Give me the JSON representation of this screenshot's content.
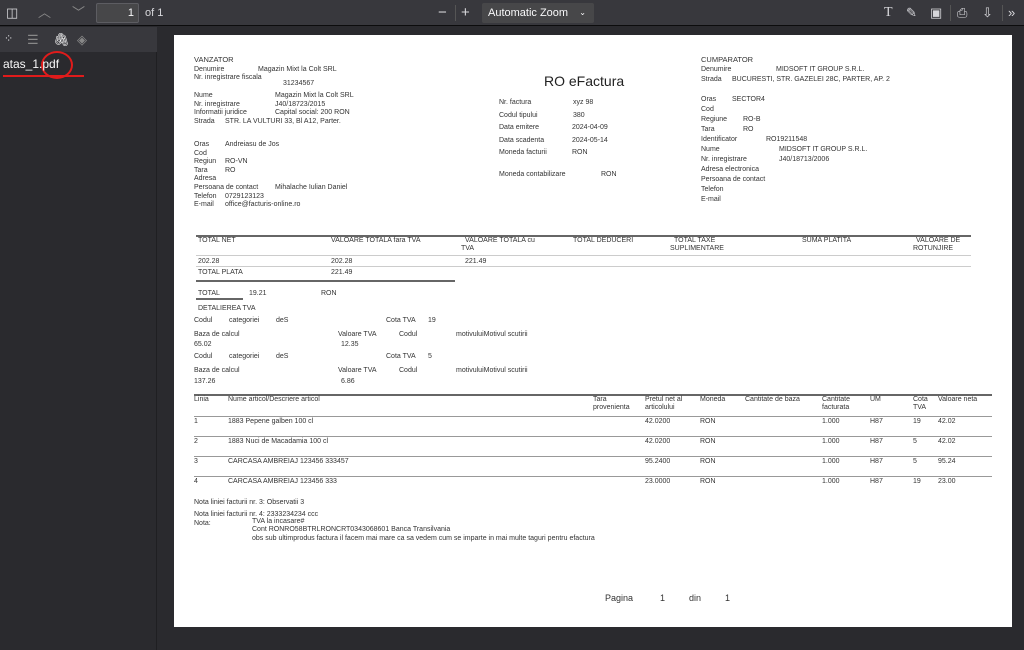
{
  "toolbar": {
    "page_current": "1",
    "page_total": "of 1",
    "zoom": "Automatic Zoom",
    "icons": [
      "sidebar-toggle-icon",
      "chevron-up-icon",
      "chevron-down-icon",
      "minus-icon",
      "plus-icon",
      "text-icon",
      "draw-icon",
      "image-icon",
      "print-icon",
      "save-icon",
      "more-icon"
    ]
  },
  "sidebar": {
    "tabs": [
      "thumbnails-icon",
      "outline-icon",
      "attachments-icon",
      "layers-icon"
    ],
    "attachment": "atas_1.pdf",
    "highlight_color": "#e01b1b"
  },
  "invoice": {
    "title": "RO eFactura",
    "seller": {
      "heading": "VANZATOR",
      "denumire_l": "Denumire",
      "denumire": "Magazin Mixt la Colt SRL",
      "nrfisc_l": "Nr. inregistrare fiscala",
      "nrfisc": "31234567",
      "nume_l": "Nume",
      "nume": "Magazin Mixt la Colt SRL",
      "nrinreg_l": "Nr. inregistrare",
      "nrinreg": "J40/18723/2015",
      "info_l": "Informatii juridice",
      "info": "Capital social: 200 RON",
      "strada_l": "Strada",
      "strada": "STR. LA VULTURI 33, Bl A12, Parter.",
      "oras_l": "Oras",
      "oras": "Andreiasu de Jos",
      "cod_l": "Cod",
      "regiun_l": "Regiun",
      "regiun": "RO-VN",
      "tara_l": "Tara",
      "tara": "RO",
      "adresa_l": "Adresa",
      "pers_l": "Persoana de contact",
      "pers": "Mihalache Iulian Daniel",
      "tel_l": "Telefon",
      "tel": "0729123123",
      "email_l": "E-mail",
      "email": "office@facturis-online.ro"
    },
    "meta": {
      "nr_l": "Nr. factura",
      "nr": "xyz 98",
      "cod_l": "Codul tipului",
      "cod": "380",
      "emit_l": "Data emitere",
      "emit": "2024-04-09",
      "scad_l": "Data scadenta",
      "scad": "2024-05-14",
      "mon_l": "Moneda facturii",
      "mon": "RON",
      "monc_l": "Moneda contabilizare",
      "monc": "RON"
    },
    "buyer": {
      "heading": "CUMPARATOR",
      "denumire_l": "Denumire",
      "denumire": "MIDSOFT IT GROUP S.R.L.",
      "strada_l": "Strada",
      "strada": "BUCURESTI, STR. GAZELEI 28C, PARTER, AP. 2",
      "oras_l": "Oras",
      "oras": "SECTOR4",
      "cod_l": "Cod",
      "regiune_l": "Regiune",
      "regiune": "RO-B",
      "tara_l": "Tara",
      "tara": "RO",
      "id_l": "Identificator",
      "id": "RO19211548",
      "nume_l": "Nume",
      "nume": "MIDSOFT IT GROUP S.R.L.",
      "nrinreg_l": "Nr. inregistrare",
      "nrinreg": "J40/18713/2006",
      "adr_l": "Adresa electronica",
      "pers_l": "Persoana de contact",
      "tel_l": "Telefon",
      "email_l": "E-mail"
    },
    "totals": {
      "h_net": "TOTAL NET",
      "h_fara": "VALOARE TOTALA  fara TVA",
      "h_cu1": "VALOARE TOTALA cu",
      "h_cu2": "TVA",
      "h_ded": "TOTAL DEDUCERI",
      "h_taxe1": "TOTAL TAXE",
      "h_taxe2": "SUPLIMENTARE",
      "h_suma": "SUMA PLATITA",
      "h_rot1": "VALOARE DE",
      "h_rot2": "ROTUNJIRE",
      "net": "202.28",
      "fara": "202.28",
      "cu": "221.49",
      "plata_l": "TOTAL PLATA",
      "plata": "221.49"
    },
    "tva": {
      "total_l": "TOTAL",
      "total": "19.21",
      "total_cur": "RON",
      "heading": "DETALIEREA TVA",
      "codul": "Codul",
      "categoriei": "categoriei",
      "des": "deS",
      "cota_l": "Cota TVA",
      "baza_l": "Baza de calcul",
      "val_l": "Valoare TVA",
      "codul2": "Codul",
      "motiv": "motivuluiMotivul scutirii",
      "rows": [
        {
          "cota": "19",
          "baza": "65.02",
          "val": "12.35"
        },
        {
          "cota": "5",
          "baza": "137.26",
          "val": "6.86"
        }
      ]
    },
    "items": {
      "headers": [
        "Linia",
        "Nume articol/Descriere articol",
        "Tara provenienta",
        "Pretul net al articolului",
        "Moneda",
        "Cantitate de baza",
        "Cantitate facturata",
        "UM",
        "Cota TVA",
        "Valoare neta"
      ],
      "rows": [
        {
          "linia": "1",
          "nume": "1883 Pepene galben 100 cl",
          "pret": "42.0200",
          "moneda": "RON",
          "cant": "1.000",
          "um": "H87",
          "cota": "19",
          "val": "42.02"
        },
        {
          "linia": "2",
          "nume": "1883 Nuci de Macadamia 100 cl",
          "pret": "42.0200",
          "moneda": "RON",
          "cant": "1.000",
          "um": "H87",
          "cota": "5",
          "val": "42.02"
        },
        {
          "linia": "3",
          "nume": "CARCASA AMBREIAJ 123456 333457",
          "pret": "95.2400",
          "moneda": "RON",
          "cant": "1.000",
          "um": "H87",
          "cota": "5",
          "val": "95.24"
        },
        {
          "linia": "4",
          "nume": "CARCASA AMBREIAJ 123456 333",
          "pret": "23.0000",
          "moneda": "RON",
          "cant": "1.000",
          "um": "H87",
          "cota": "19",
          "val": "23.00"
        }
      ]
    },
    "notes": {
      "n3": "Nota liniei facturii nr. 3: Observatii 3",
      "n4": "Nota liniei facturii nr. 4: 2333234234 ccc",
      "nota_l": "Nota:",
      "lines": [
        "TVA la incasare#",
        "Cont RONRO58BTRLRONCRT0343068601 Banca Transilvania",
        "obs sub ultimprodus factura il facem mai mare ca sa vedem cum se imparte in mai multe taguri pentru efactura"
      ]
    },
    "footer": {
      "pagina": "Pagina",
      "page": "1",
      "din": "din",
      "total": "1"
    }
  }
}
